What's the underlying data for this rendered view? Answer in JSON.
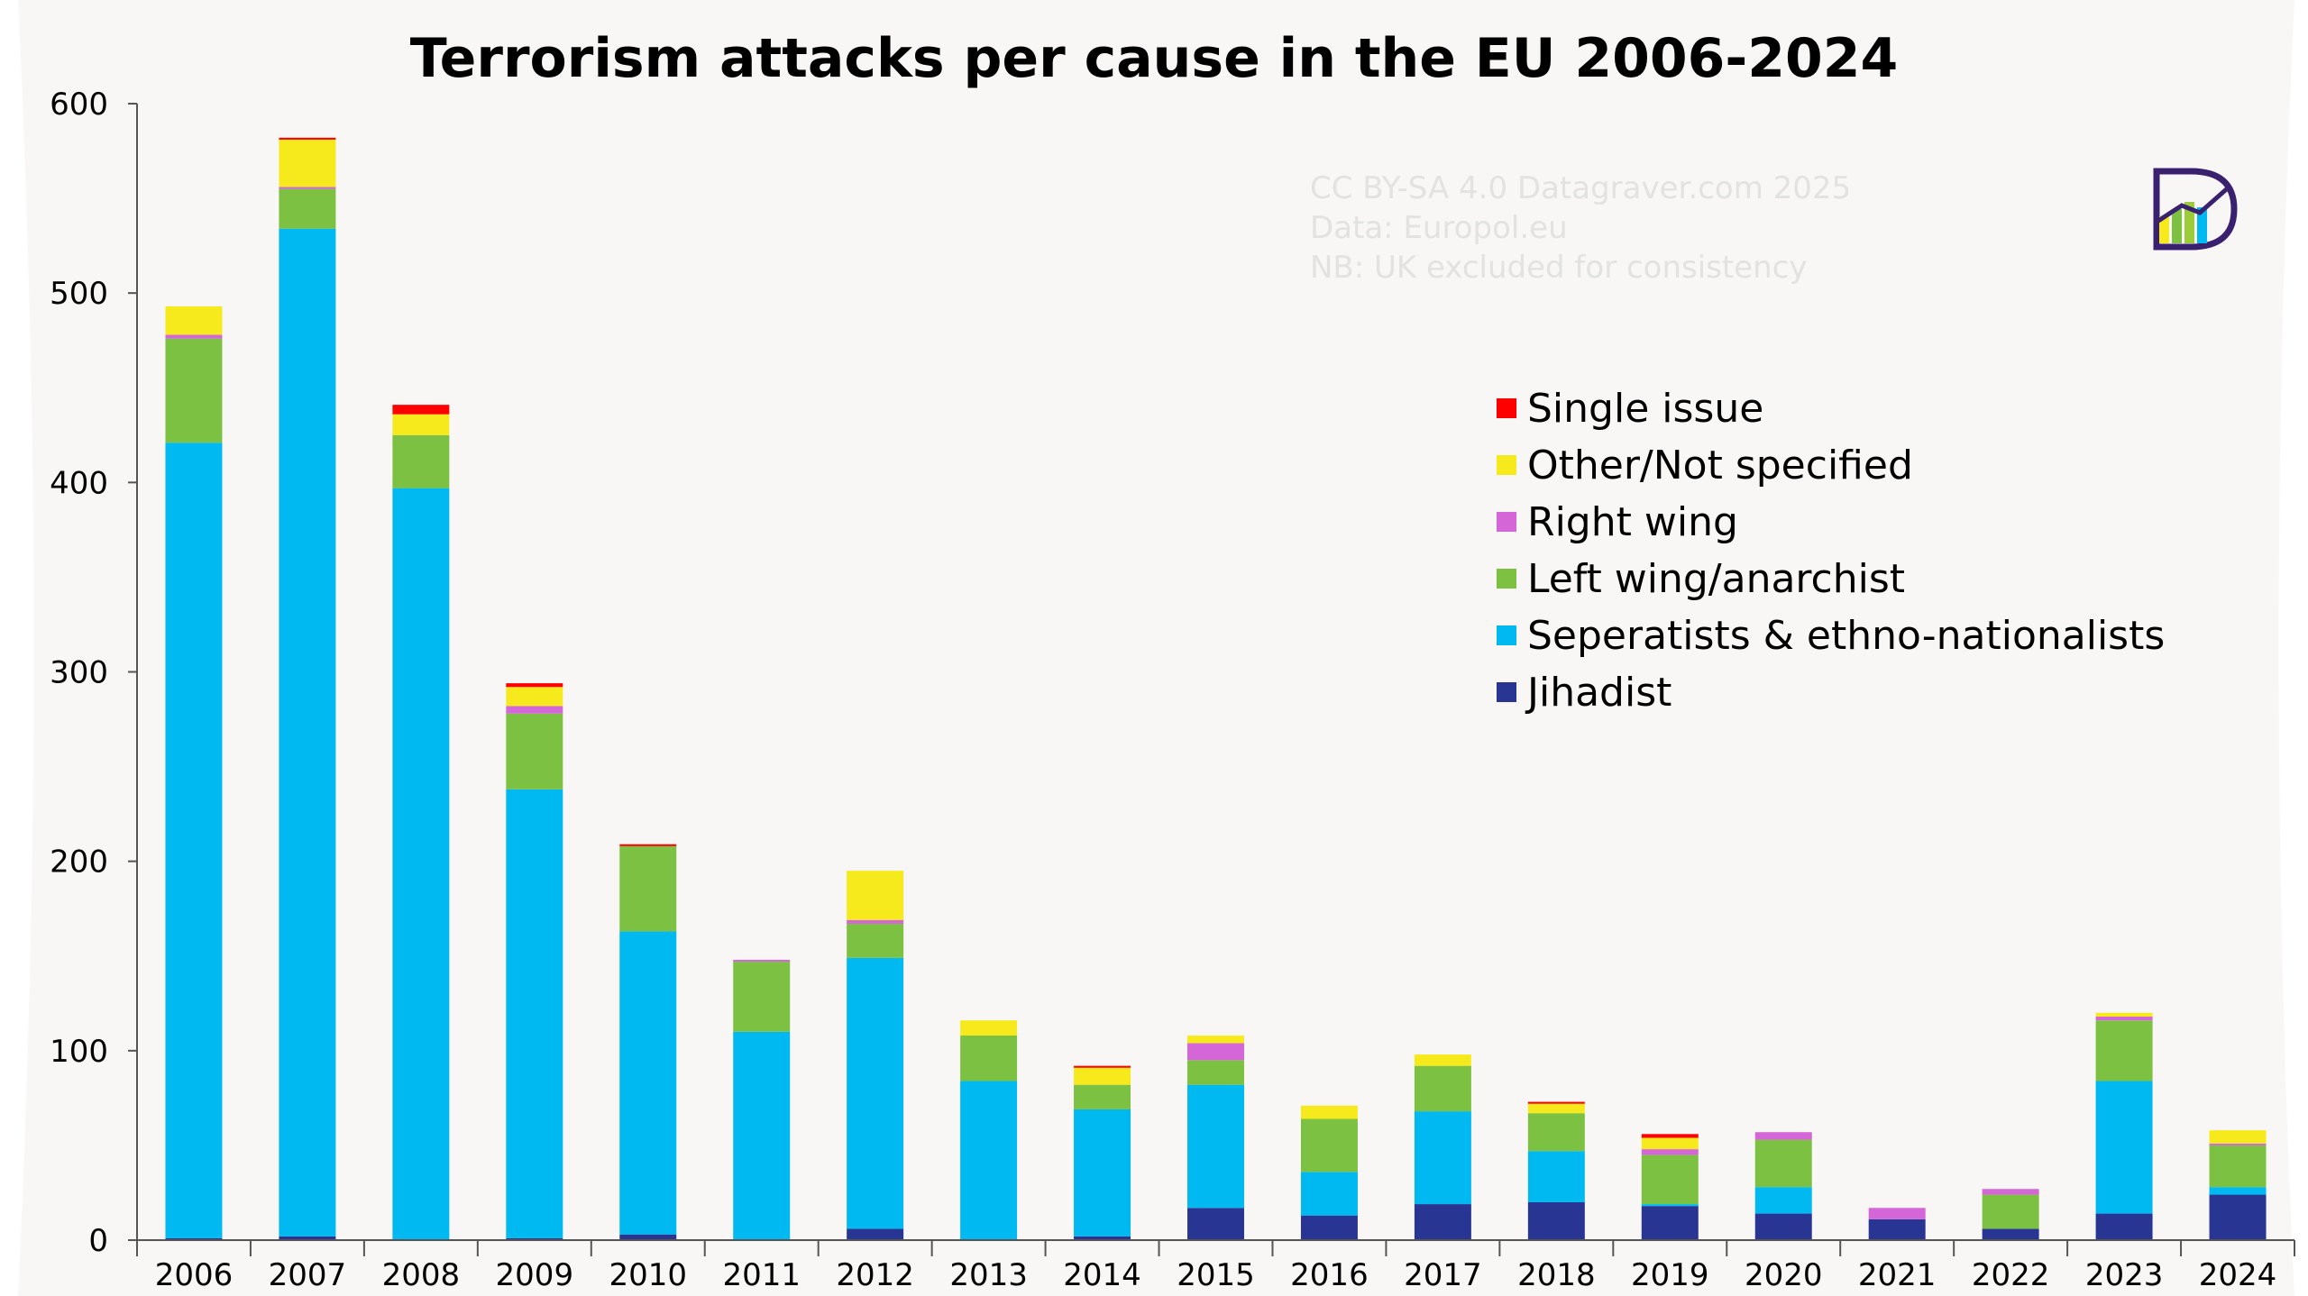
{
  "chart_data": {
    "type": "bar",
    "stacked": true,
    "title": "Terrorism attacks per cause in the EU 2006-2024",
    "xlabel": "",
    "ylabel": "",
    "ylim": [
      0,
      600
    ],
    "yticks": [
      0,
      100,
      200,
      300,
      400,
      500,
      600
    ],
    "categories": [
      "2006",
      "2007",
      "2008",
      "2009",
      "2010",
      "2011",
      "2012",
      "2013",
      "2014",
      "2015",
      "2016",
      "2017",
      "2018",
      "2019",
      "2020",
      "2021",
      "2022",
      "2023",
      "2024"
    ],
    "series": [
      {
        "name": "Jihadist",
        "color": "#283593",
        "values": [
          1,
          2,
          0,
          1,
          3,
          0,
          6,
          0,
          2,
          17,
          13,
          19,
          20,
          18,
          14,
          11,
          6,
          14,
          24
        ]
      },
      {
        "name": "Seperatists & ethno-nationalists",
        "color": "#00b9f0",
        "values": [
          420,
          532,
          397,
          237,
          160,
          110,
          143,
          84,
          67,
          65,
          23,
          49,
          27,
          1,
          14,
          0,
          0,
          70,
          4
        ]
      },
      {
        "name": "Left wing/anarchist",
        "color": "#7cc142",
        "values": [
          55,
          21,
          28,
          40,
          45,
          37,
          18,
          24,
          13,
          13,
          28,
          24,
          20,
          26,
          25,
          0,
          18,
          32,
          22
        ]
      },
      {
        "name": "Right wing",
        "color": "#d566d8",
        "values": [
          2,
          1,
          0,
          4,
          0,
          1,
          2,
          0,
          0,
          9,
          0,
          0,
          0,
          3,
          4,
          6,
          3,
          2,
          1
        ]
      },
      {
        "name": "Other/Not specified",
        "color": "#f7ea1c",
        "values": [
          15,
          25,
          11,
          10,
          0,
          0,
          26,
          8,
          9,
          4,
          7,
          6,
          5,
          6,
          0,
          0,
          0,
          2,
          7
        ]
      },
      {
        "name": "Single issue",
        "color": "#ff0000",
        "values": [
          0,
          1,
          5,
          2,
          1,
          0,
          0,
          0,
          1,
          0,
          0,
          0,
          1,
          2,
          0,
          0,
          0,
          0,
          0
        ]
      }
    ],
    "legend": [
      "Single issue",
      "Other/Not specified",
      "Right wing",
      "Left wing/anarchist",
      "Seperatists & ethno-nationalists",
      "Jihadist"
    ],
    "legend_position": "right",
    "notes": [
      "CC BY-SA 4.0 Datagraver.com 2025",
      "Data: Europol.eu",
      "NB: UK excluded for consistency"
    ],
    "grid": false
  }
}
